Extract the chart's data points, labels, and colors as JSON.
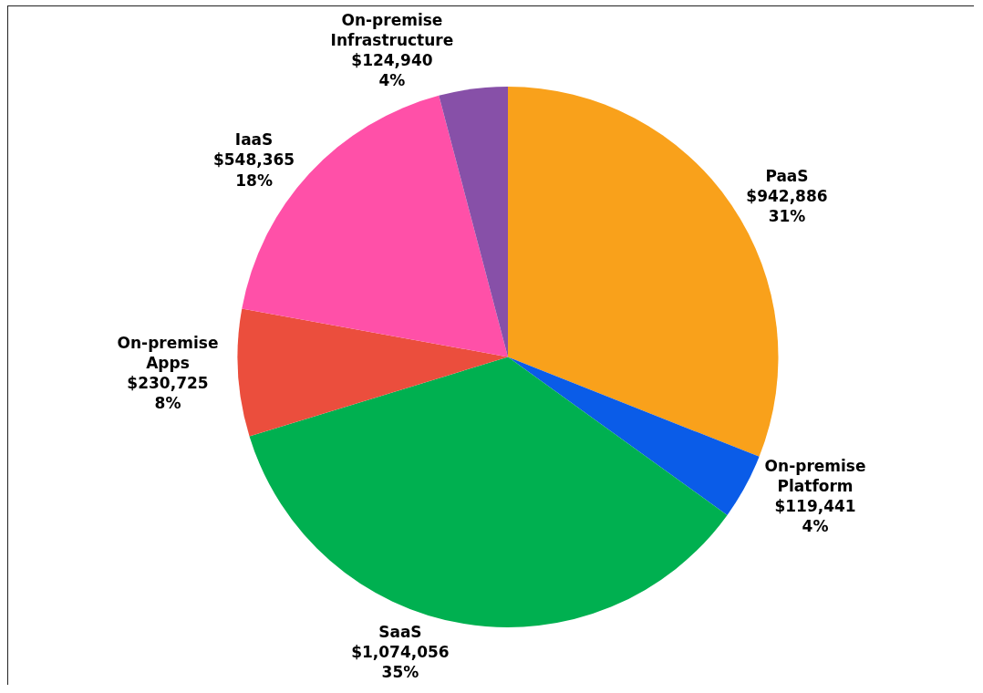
{
  "chart_data": {
    "type": "pie",
    "categories": [
      "PaaS",
      "On-premise Platform",
      "SaaS",
      "On-premise Apps",
      "IaaS",
      "On-premise Infrastructure"
    ],
    "values": [
      942886,
      119441,
      1074056,
      230725,
      548365,
      124940
    ],
    "value_labels": [
      "$942,886\n31%",
      "$119,441\n4%",
      "$1,074,056\n35%",
      "$230,725\n8%",
      "$548,365\n18%",
      "$124,940\n4%"
    ],
    "colors": [
      "#f9a11b",
      "#0a5ce8",
      "#00b050",
      "#eb4e3d",
      "#ff50a8",
      "#8750a8"
    ],
    "legend": false
  }
}
